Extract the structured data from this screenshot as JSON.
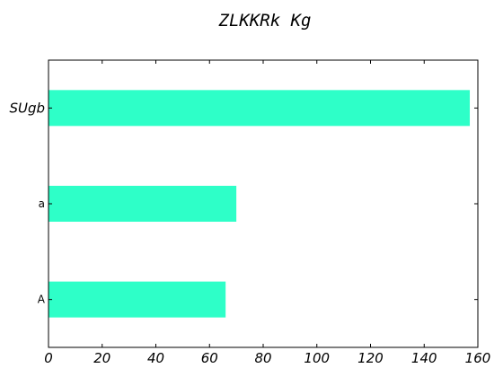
{
  "chart_data": {
    "type": "bar",
    "orientation": "horizontal",
    "title": "ZLKKRk Kg",
    "xlabel": "",
    "ylabel": "",
    "categories": [
      "SUgb",
      "a",
      "A"
    ],
    "values": [
      157,
      70,
      66
    ],
    "xlim": [
      0,
      160
    ],
    "xticks": [
      "0",
      "20",
      "40",
      "60",
      "80",
      "100",
      "120",
      "140",
      "160"
    ],
    "grid": false,
    "bar_color": "#2effc8"
  }
}
